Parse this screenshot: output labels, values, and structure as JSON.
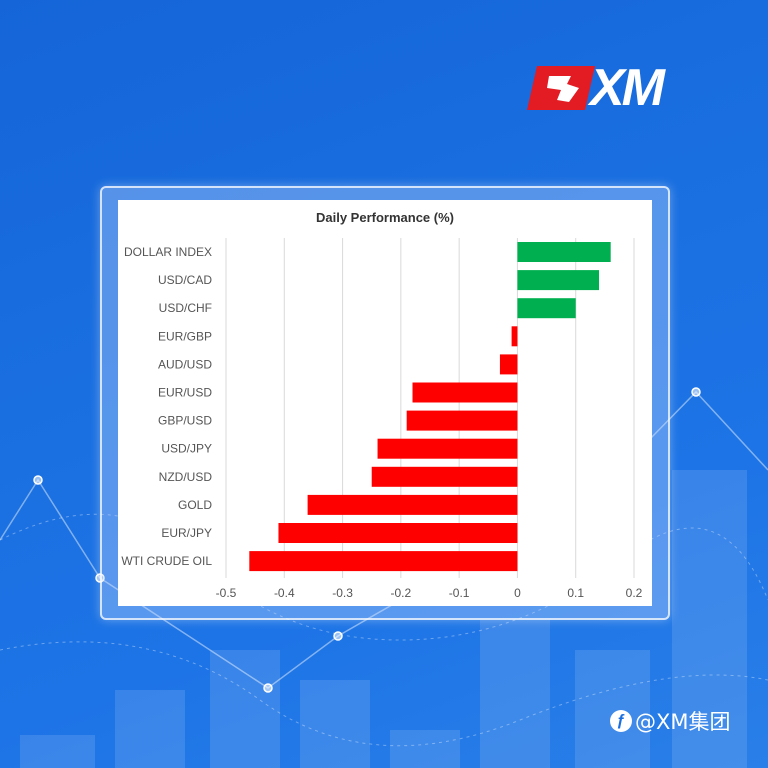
{
  "brand": {
    "logo_text": "XM",
    "watermark_text": "@XM集团",
    "watermark_icon": "social-icon"
  },
  "colors": {
    "positive": "#00b050",
    "negative": "#ff0000",
    "background": "#1a6fe0"
  },
  "chart_data": {
    "type": "bar",
    "orientation": "horizontal",
    "title": "Daily Performance (%)",
    "categories": [
      "DOLLAR INDEX",
      "USD/CAD",
      "USD/CHF",
      "EUR/GBP",
      "AUD/USD",
      "EUR/USD",
      "GBP/USD",
      "USD/JPY",
      "NZD/USD",
      "GOLD",
      "EUR/JPY",
      "WTI CRUDE OIL"
    ],
    "values": [
      0.16,
      0.14,
      0.1,
      -0.01,
      -0.03,
      -0.18,
      -0.19,
      -0.24,
      -0.25,
      -0.36,
      -0.41,
      -0.46
    ],
    "xlim": [
      -0.5,
      0.2
    ],
    "x_ticks": [
      -0.5,
      -0.4,
      -0.3,
      -0.2,
      -0.1,
      0,
      0.1,
      0.2
    ],
    "x_tick_labels": [
      "-0.5",
      "-0.4",
      "-0.3",
      "-0.2",
      "-0.1",
      "0",
      "0.1",
      "0.2"
    ],
    "grid": true,
    "legend": "none"
  }
}
